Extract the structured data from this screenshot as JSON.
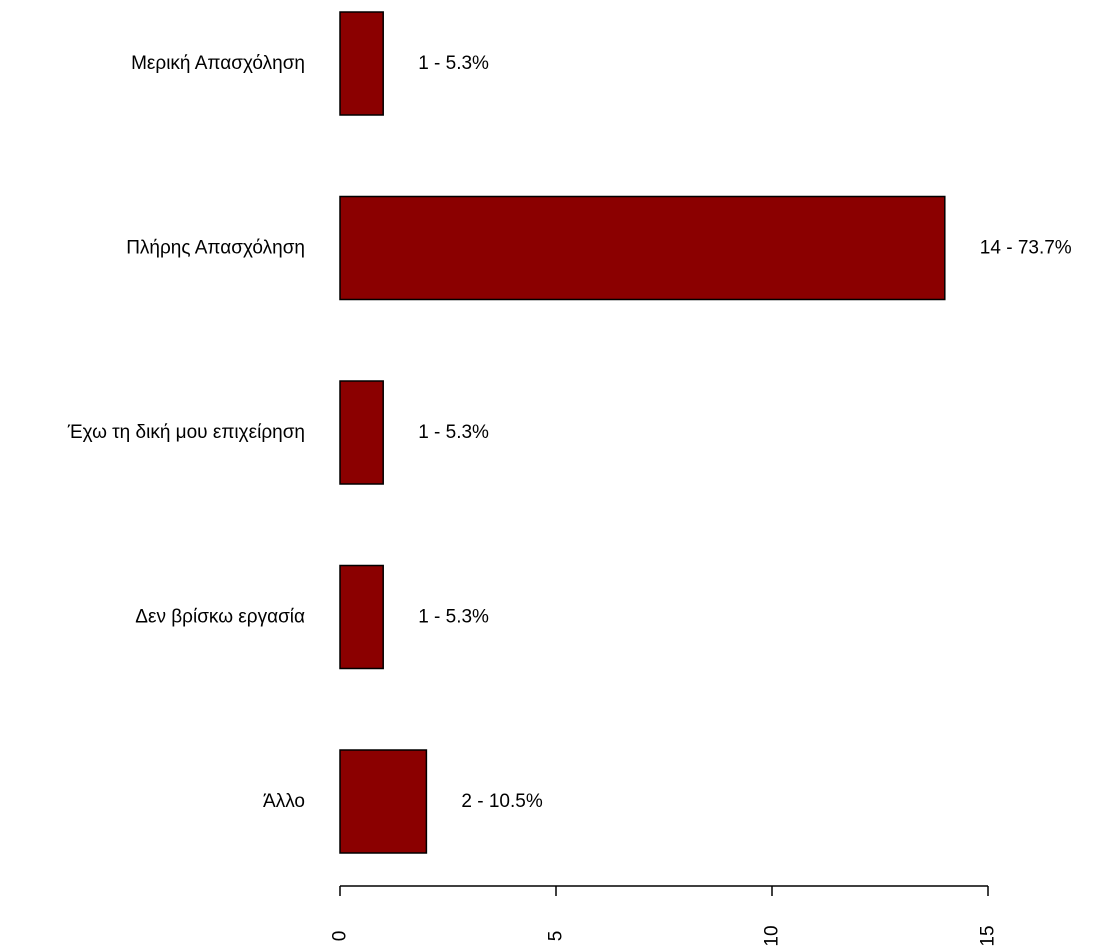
{
  "chart_data": {
    "type": "bar",
    "orientation": "horizontal",
    "categories": [
      "Μερική Απασχόληση",
      "Πλήρης Απασχόληση",
      "Έχω τη δική μου επιχείρηση",
      "Δεν βρίσκω εργασία",
      "Άλλο"
    ],
    "values": [
      1,
      14,
      1,
      1,
      2
    ],
    "data_labels": [
      "1 - 5.3%",
      "14 - 73.7%",
      "1 - 5.3%",
      "1 - 5.3%",
      "2 - 10.5%"
    ],
    "xlim": [
      0,
      15
    ],
    "x_ticks": [
      0,
      5,
      10,
      15
    ],
    "x_tick_labels": [
      "0",
      "5",
      "10",
      "15"
    ],
    "x_tick_label_orientation": "vertical",
    "bar_color": "#8B0000",
    "bar_border_color": "#000000",
    "grid": false,
    "legend": "none",
    "title": "",
    "xlabel": "",
    "ylabel": ""
  }
}
